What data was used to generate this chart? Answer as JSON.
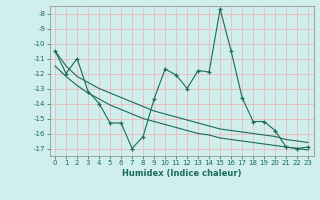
{
  "x": [
    0,
    1,
    2,
    3,
    4,
    5,
    6,
    7,
    8,
    9,
    10,
    11,
    12,
    13,
    14,
    15,
    16,
    17,
    18,
    19,
    20,
    21,
    22,
    23
  ],
  "y_main": [
    -10.5,
    -12.0,
    -11.0,
    -13.2,
    -14.0,
    -15.3,
    -15.3,
    -17.0,
    -16.2,
    -13.7,
    -11.7,
    -12.1,
    -13.0,
    -11.8,
    -11.9,
    -7.7,
    -10.5,
    -13.6,
    -15.2,
    -15.2,
    -15.8,
    -16.9,
    -17.0,
    -16.9
  ],
  "y_upper": [
    -10.5,
    -11.5,
    -12.2,
    -12.6,
    -13.0,
    -13.3,
    -13.6,
    -13.9,
    -14.2,
    -14.5,
    -14.7,
    -14.9,
    -15.1,
    -15.3,
    -15.5,
    -15.7,
    -15.8,
    -15.9,
    -16.0,
    -16.1,
    -16.2,
    -16.4,
    -16.5,
    -16.6
  ],
  "y_lower": [
    -11.5,
    -12.2,
    -12.8,
    -13.3,
    -13.7,
    -14.1,
    -14.4,
    -14.7,
    -15.0,
    -15.2,
    -15.4,
    -15.6,
    -15.8,
    -16.0,
    -16.1,
    -16.3,
    -16.4,
    -16.5,
    -16.6,
    -16.7,
    -16.8,
    -16.9,
    -17.0,
    -17.1
  ],
  "xlim": [
    -0.5,
    23.5
  ],
  "ylim": [
    -17.5,
    -7.5
  ],
  "yticks": [
    -8,
    -9,
    -10,
    -11,
    -12,
    -13,
    -14,
    -15,
    -16,
    -17
  ],
  "xticks": [
    0,
    1,
    2,
    3,
    4,
    5,
    6,
    7,
    8,
    9,
    10,
    11,
    12,
    13,
    14,
    15,
    16,
    17,
    18,
    19,
    20,
    21,
    22,
    23
  ],
  "xlabel": "Humidex (Indice chaleur)",
  "line_color": "#1a6b5a",
  "bg_color": "#d0eeeb",
  "grid_color": "#f0b0b0"
}
